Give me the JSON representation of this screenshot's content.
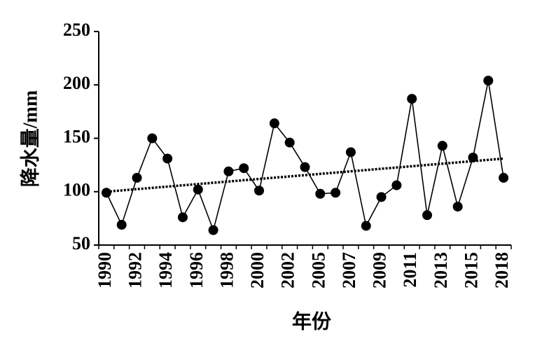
{
  "chart_data": {
    "type": "line",
    "x_label": "年份",
    "y_label": "降水量/mm",
    "categories": [
      "1990",
      null,
      "1992",
      null,
      "1994",
      null,
      "1996",
      null,
      "1998",
      null,
      "2000",
      null,
      "2002",
      null,
      "2005",
      null,
      "2007",
      null,
      "2009",
      null,
      "2011",
      null,
      "2013",
      null,
      "2015",
      null,
      "2018"
    ],
    "series": [
      {
        "color": "#000000",
        "values": [
          99,
          69,
          113,
          150,
          131,
          76,
          102,
          64,
          119,
          122,
          101,
          164,
          146,
          123,
          98,
          99,
          137,
          68,
          95,
          106,
          187,
          78,
          143,
          86,
          132,
          204,
          113
        ]
      }
    ],
    "trendline": {
      "color": "#000000",
      "values": [
        100,
        131
      ]
    },
    "ylim": [
      50,
      250
    ],
    "yticks": [
      50,
      100,
      150,
      200,
      250
    ]
  }
}
